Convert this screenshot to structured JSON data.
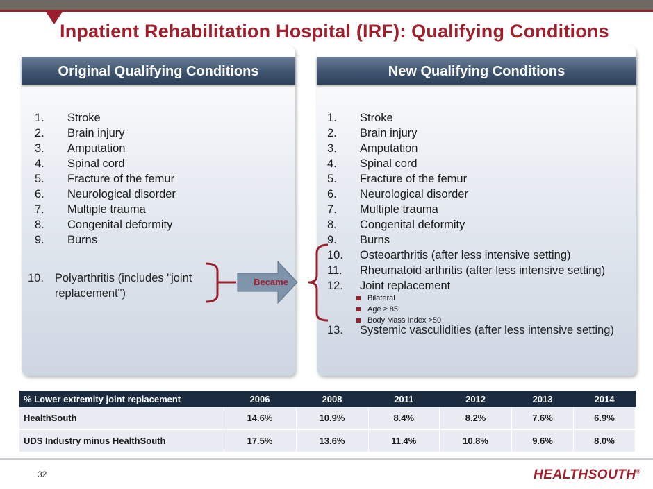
{
  "title": "Inpatient Rehabilitation Hospital (IRF): Qualifying Conditions",
  "left_panel": {
    "heading": "Original Qualifying Conditions",
    "items": [
      {
        "num": "1.",
        "text": "Stroke"
      },
      {
        "num": "2.",
        "text": "Brain injury"
      },
      {
        "num": "3.",
        "text": "Amputation"
      },
      {
        "num": "4.",
        "text": "Spinal cord"
      },
      {
        "num": "5.",
        "text": "Fracture of the femur"
      },
      {
        "num": "6.",
        "text": "Neurological disorder"
      },
      {
        "num": "7.",
        "text": "Multiple trauma"
      },
      {
        "num": "8.",
        "text": "Congenital deformity"
      },
      {
        "num": "9.",
        "text": "Burns"
      }
    ],
    "item10": {
      "num": "10.",
      "text": "Polyarthritis (includes \"joint replacement\")"
    }
  },
  "arrow_label": "Became",
  "right_panel": {
    "heading": "New Qualifying Conditions",
    "items": [
      {
        "num": "1.",
        "text": "Stroke"
      },
      {
        "num": "2.",
        "text": "Brain injury"
      },
      {
        "num": "3.",
        "text": "Amputation"
      },
      {
        "num": "4.",
        "text": "Spinal cord"
      },
      {
        "num": "5.",
        "text": "Fracture of the femur"
      },
      {
        "num": "6.",
        "text": "Neurological disorder"
      },
      {
        "num": "7.",
        "text": "Multiple trauma"
      },
      {
        "num": "8.",
        "text": "Congenital deformity"
      },
      {
        "num": "9.",
        "text": "Burns"
      },
      {
        "num": "10.",
        "text": "Osteoarthritis (after less intensive setting)"
      },
      {
        "num": "11.",
        "text": "Rheumatoid arthritis (after less intensive setting)"
      },
      {
        "num": "12.",
        "text": "Joint replacement"
      }
    ],
    "sub_items": [
      "Bilateral",
      "Age ≥ 85",
      "Body Mass Index >50"
    ],
    "item13": {
      "num": "13.",
      "text": "Systemic vasculidities (after less intensive setting)"
    }
  },
  "table": {
    "headers": [
      "% Lower extremity joint replacement",
      "2006",
      "2008",
      "2011",
      "2012",
      "2013",
      "2014"
    ],
    "rows": [
      [
        "HealthSouth",
        "14.6%",
        "10.9%",
        "8.4%",
        "8.2%",
        "7.6%",
        "6.9%"
      ],
      [
        "UDS Industry minus HealthSouth",
        "17.5%",
        "13.6%",
        "11.4%",
        "10.8%",
        "9.6%",
        "8.0%"
      ]
    ]
  },
  "page_number": "32",
  "logo_text": "HEALTHSOUTH"
}
